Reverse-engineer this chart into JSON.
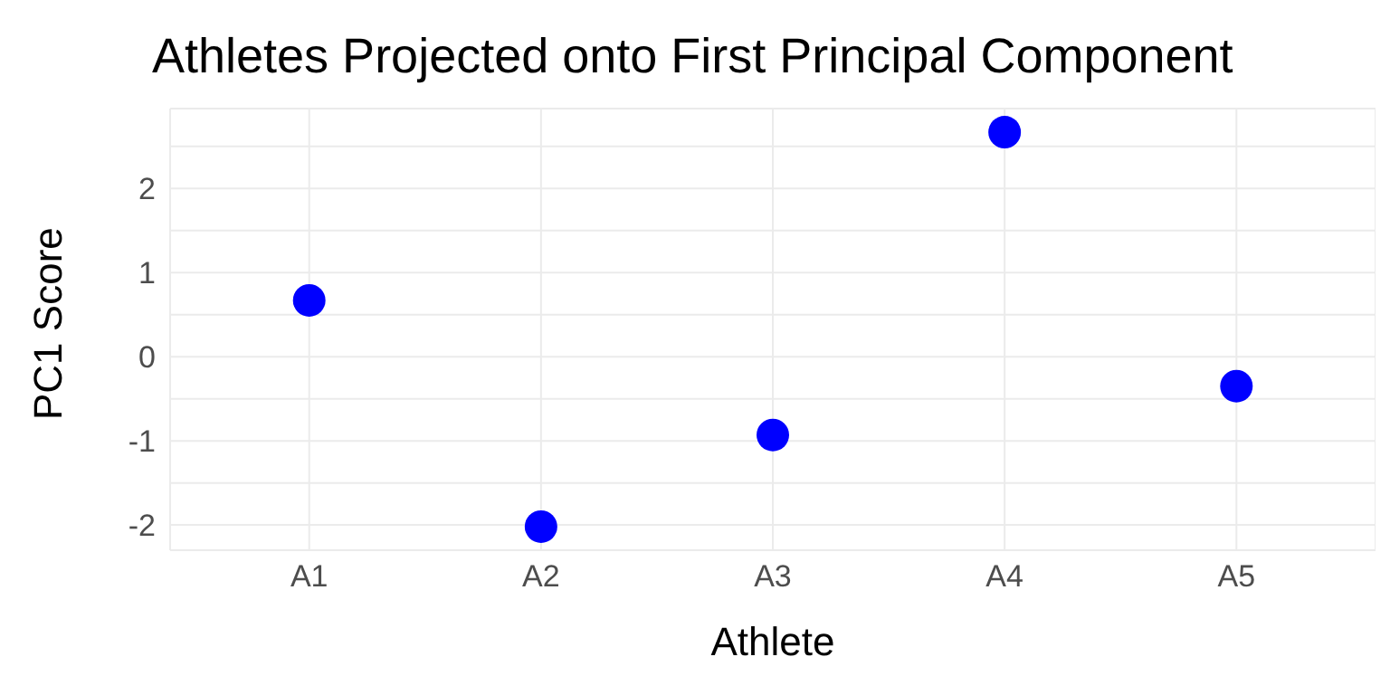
{
  "chart_data": {
    "type": "scatter",
    "title": "Athletes Projected onto First Principal Component",
    "xlabel": "Athlete",
    "ylabel": "PC1 Score",
    "categories": [
      "A1",
      "A2",
      "A3",
      "A4",
      "A5"
    ],
    "series": [
      {
        "color": "#0000ff",
        "values": [
          0.67,
          -2.02,
          -0.93,
          2.67,
          -0.35
        ]
      }
    ],
    "ylim": [
      -2.3,
      2.95
    ],
    "yticks": [
      -2,
      {
        "value": -1.5,
        "label": null
      },
      -1,
      {
        "value": -0.5,
        "label": null
      },
      0,
      {
        "value": 0.5,
        "label": null
      },
      1,
      {
        "value": 1.5,
        "label": null
      },
      2,
      {
        "value": 2.5,
        "label": null
      }
    ],
    "grid": true,
    "marker": "circle",
    "legend": false
  }
}
